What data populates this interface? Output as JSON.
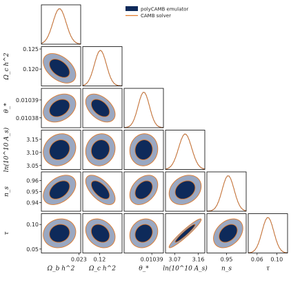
{
  "chart_data": {
    "type": "scatter",
    "subtype": "corner-plot (triangle plot) of 1D and 2D marginal posteriors",
    "legend": {
      "placement": "top-center",
      "entries": [
        {
          "label": "polyCAMB emulator",
          "style": "filled contours",
          "color_inner": "#0e2a5a",
          "color_outer": "#9aa8c2"
        },
        {
          "label": "CAMB solver",
          "style": "line",
          "color": "#e07a2a"
        }
      ]
    },
    "parameters": [
      {
        "name": "omega_b",
        "label": "Ω_b h^2",
        "mean": 0.02236,
        "sigma": 0.00022,
        "range": [
          0.02176,
          0.02306
        ],
        "xticks": [
          "0.023"
        ],
        "yticks": []
      },
      {
        "name": "omega_c",
        "label": "Ω_c h^2",
        "mean": 0.1202,
        "sigma": 0.0015,
        "range": [
          0.1158,
          0.1256
        ],
        "xticks": [
          "0.12"
        ],
        "yticks": [
          "0.125",
          "0.120"
        ]
      },
      {
        "name": "theta_star",
        "label": "θ_*",
        "mean": 0.0103855,
        "sigma": 3.2e-06,
        "range": [
          0.0103745,
          0.0103965
        ],
        "xticks": [
          "0.01039"
        ],
        "yticks": [
          "0.01039",
          "0.01038"
        ]
      },
      {
        "name": "ln10As",
        "label": "ln(10^10 A_s)",
        "mean": 3.11,
        "sigma": 0.025,
        "range": [
          3.035,
          3.185
        ],
        "xticks": [
          "3.07",
          "3.16"
        ],
        "yticks": [
          "3.15",
          "3.10",
          "3.05"
        ]
      },
      {
        "name": "n_s",
        "label": "n_s",
        "mean": 0.9515,
        "sigma": 0.0055,
        "range": [
          0.932,
          0.968
        ],
        "xticks": [
          "0.95"
        ],
        "yticks": [
          "0.96",
          "0.95",
          "0.94"
        ]
      },
      {
        "name": "tau",
        "label": "τ",
        "mean": 0.082,
        "sigma": 0.012,
        "range": [
          0.042,
          0.122
        ],
        "xticks": [
          "0.06",
          "0.10"
        ],
        "yticks": [
          "0.10",
          "0.05"
        ]
      }
    ],
    "correlations": [
      {
        "pair": [
          "omega_c",
          "omega_b"
        ],
        "rho": -0.45
      },
      {
        "pair": [
          "theta_star",
          "omega_b"
        ],
        "rho": 0.3
      },
      {
        "pair": [
          "theta_star",
          "omega_c"
        ],
        "rho": -0.45
      },
      {
        "pair": [
          "ln10As",
          "omega_b"
        ],
        "rho": 0.15
      },
      {
        "pair": [
          "ln10As",
          "omega_c"
        ],
        "rho": 0.1
      },
      {
        "pair": [
          "ln10As",
          "theta_star"
        ],
        "rho": 0.05
      },
      {
        "pair": [
          "n_s",
          "omega_b"
        ],
        "rho": 0.4
      },
      {
        "pair": [
          "n_s",
          "omega_c"
        ],
        "rho": -0.6
      },
      {
        "pair": [
          "n_s",
          "theta_star"
        ],
        "rho": 0.35
      },
      {
        "pair": [
          "n_s",
          "ln10As"
        ],
        "rho": 0.25
      },
      {
        "pair": [
          "tau",
          "omega_b"
        ],
        "rho": 0.1
      },
      {
        "pair": [
          "tau",
          "omega_c"
        ],
        "rho": -0.25
      },
      {
        "pair": [
          "tau",
          "theta_star"
        ],
        "rho": 0.15
      },
      {
        "pair": [
          "tau",
          "ln10As"
        ],
        "rho": 0.95
      },
      {
        "pair": [
          "tau",
          "n_s"
        ],
        "rho": 0.35
      }
    ],
    "contour_levels": [
      "68%",
      "95%"
    ],
    "grid": false
  },
  "colors": {
    "inner_fill": "#0e2a5a",
    "outer_fill": "#9aa8c2",
    "camb_line": "#e07a2a",
    "emulator_line": "#1b2f63",
    "frame": "#000000"
  }
}
